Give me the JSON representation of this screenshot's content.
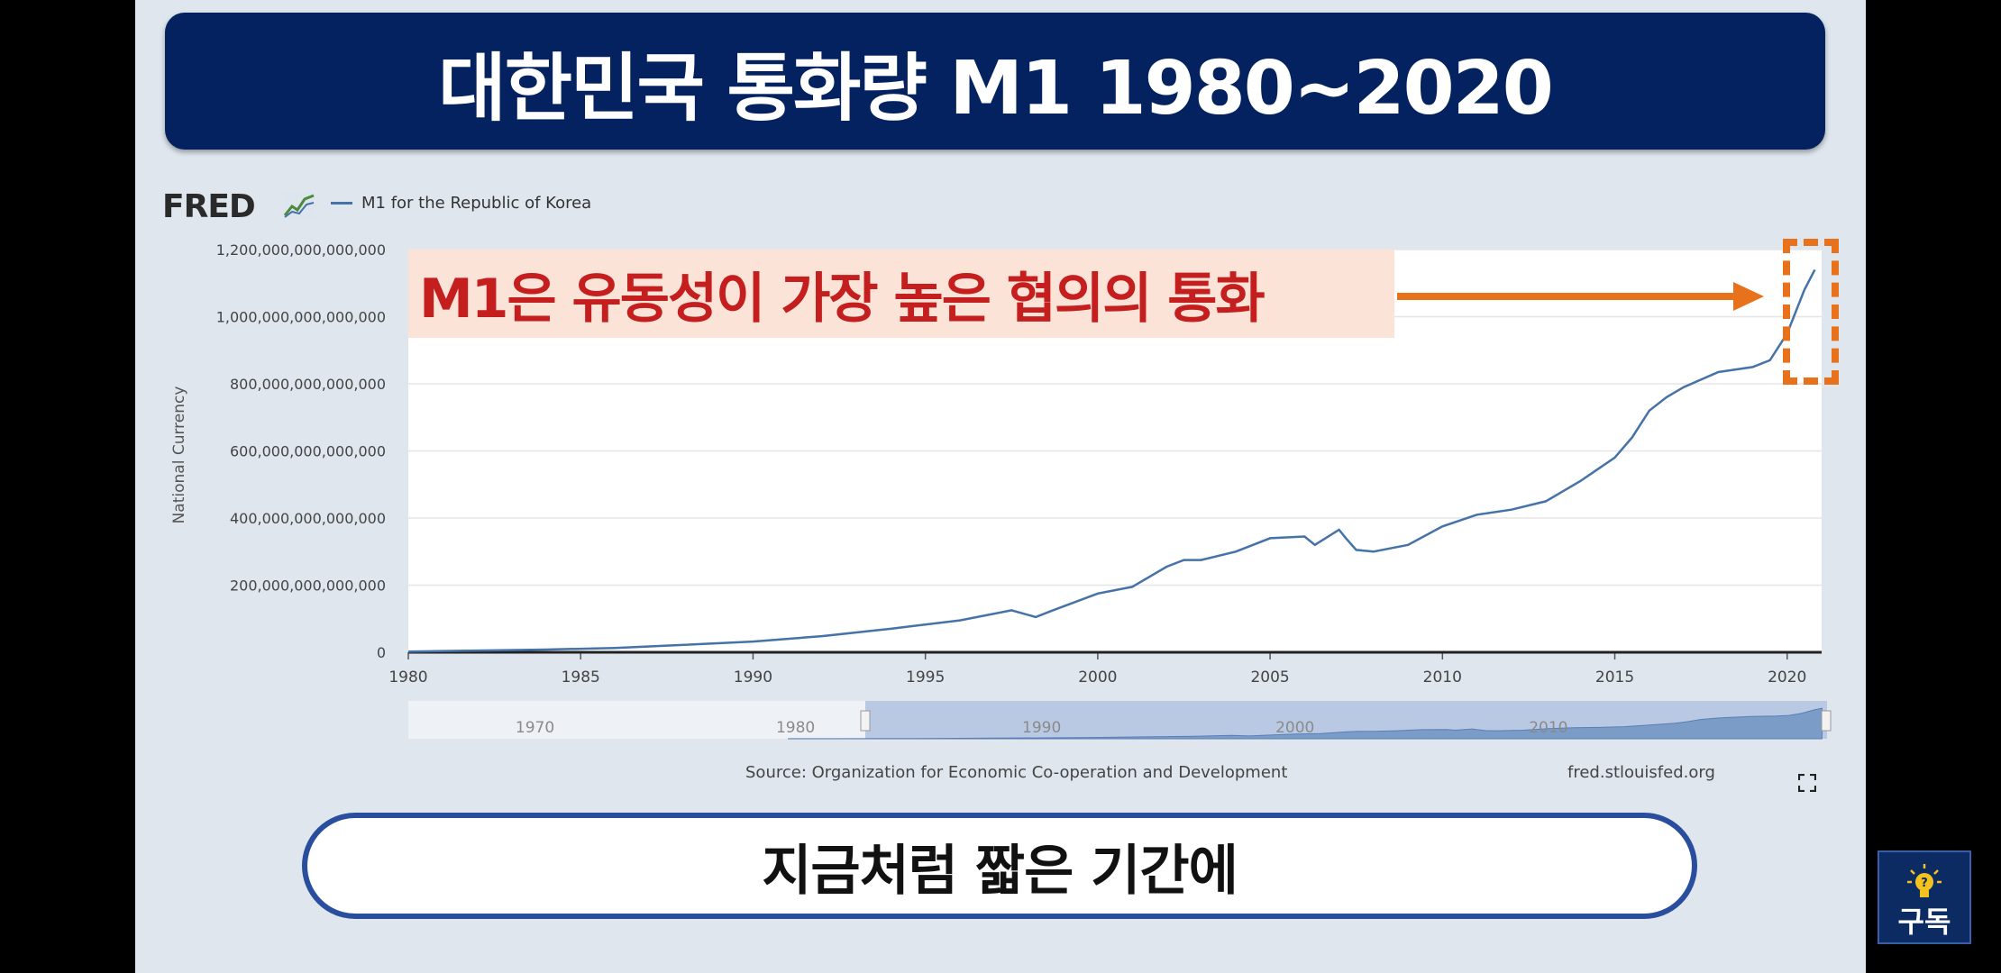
{
  "title": "대한민국 통화량 M1 1980~2020",
  "fred_logo": "FRED",
  "legend": "M1 for the Republic of Korea",
  "annotation": "M1은 유동성이 가장 높은 협의의 통화",
  "source": "Source: Organization for Economic Co-operation and Development",
  "fred_url": "fred.stlouisfed.org",
  "subtitle": "지금처럼 짧은 기간에",
  "subscribe_label": "구독",
  "colors": {
    "title_bg": "#03225f",
    "line": "#4572a7",
    "annotation_text": "#c41e1e",
    "annotation_bg": "#fbe3d8",
    "arrow": "#e8721c"
  },
  "icons": [
    "fred-chart-icon",
    "arrow-icon",
    "fullscreen-icon",
    "lightbulb-icon"
  ],
  "chart_data": {
    "type": "line",
    "ylabel": "National Currency",
    "xlabel": "",
    "xlim": [
      1980,
      2021
    ],
    "ylim": [
      0,
      1200000000000000
    ],
    "y_ticks": [
      0,
      200000000000000,
      400000000000000,
      600000000000000,
      800000000000000,
      1000000000000000,
      1200000000000000
    ],
    "y_tick_labels": [
      "0",
      "200,000,000,000,000",
      "400,000,000,000,000",
      "600,000,000,000,000",
      "800,000,000,000,000",
      "1,000,000,000,000,000",
      "1,200,000,000,000,000"
    ],
    "x_ticks": [
      1980,
      1985,
      1990,
      1995,
      2000,
      2005,
      2010,
      2015,
      2020
    ],
    "x_tick_labels": [
      "1980",
      "1985",
      "1990",
      "1995",
      "2000",
      "2005",
      "2010",
      "2015",
      "2020"
    ],
    "navigator_labels": [
      "1970",
      "1980",
      "1990",
      "2000",
      "2010"
    ],
    "legend_position": "top-left",
    "series": [
      {
        "name": "M1 for the Republic of Korea",
        "x": [
          1980,
          1982,
          1984,
          1986,
          1988,
          1990,
          1992,
          1994,
          1996,
          1997.5,
          1998.2,
          1998.7,
          2000,
          2001,
          2002,
          2002.5,
          2003,
          2004,
          2005,
          2006,
          2006.3,
          2007,
          2007.2,
          2007.5,
          2008,
          2009,
          2010,
          2011,
          2012,
          2013,
          2014,
          2015,
          2015.5,
          2016,
          2016.5,
          2017,
          2018,
          2019,
          2019.5,
          2020,
          2020.5,
          2020.8
        ],
        "y": [
          2000000000000,
          5000000000000,
          8000000000000,
          13000000000000,
          22000000000000,
          32000000000000,
          48000000000000,
          70000000000000,
          95000000000000,
          125000000000000,
          105000000000000,
          125000000000000,
          175000000000000,
          195000000000000,
          255000000000000,
          275000000000000,
          275000000000000,
          300000000000000,
          340000000000000,
          345000000000000,
          320000000000000,
          365000000000000,
          340000000000000,
          305000000000000,
          300000000000000,
          320000000000000,
          375000000000000,
          410000000000000,
          425000000000000,
          450000000000000,
          510000000000000,
          580000000000000,
          640000000000000,
          720000000000000,
          760000000000000,
          790000000000000,
          835000000000000,
          850000000000000,
          870000000000000,
          950000000000000,
          1080000000000000,
          1140000000000000
        ]
      }
    ]
  }
}
